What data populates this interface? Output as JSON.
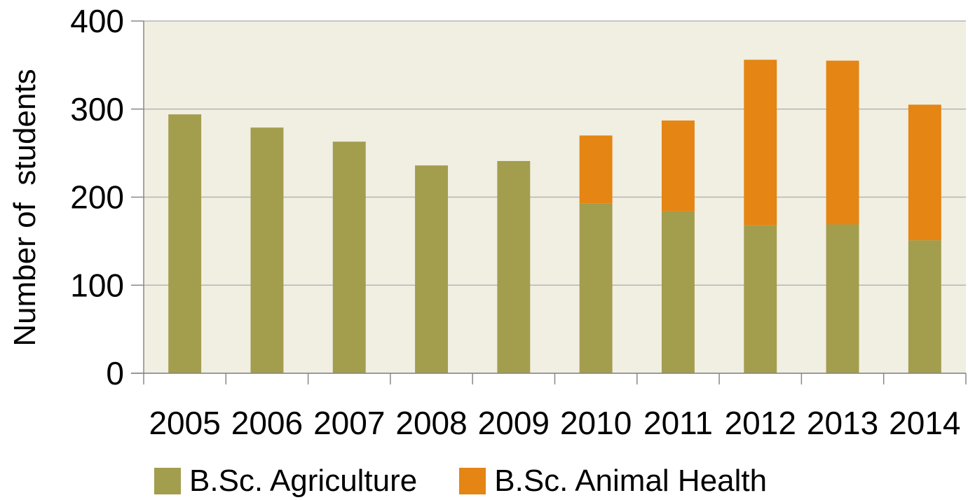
{
  "chart_data": {
    "type": "bar",
    "stacked": true,
    "title": "",
    "xlabel": "",
    "ylabel": "Number of  students",
    "categories": [
      "2005",
      "2006",
      "2007",
      "2008",
      "2009",
      "2010",
      "2011",
      "2012",
      "2013",
      "2014"
    ],
    "series": [
      {
        "name": "B.Sc. Agriculture",
        "color": "#a39d4e",
        "values": [
          294,
          279,
          263,
          236,
          241,
          193,
          184,
          168,
          169,
          151
        ]
      },
      {
        "name": "B.Sc. Animal Health",
        "color": "#e48514",
        "values": [
          0,
          0,
          0,
          0,
          0,
          77,
          103,
          188,
          186,
          154
        ]
      }
    ],
    "ylim": [
      0,
      400
    ],
    "yticks": [
      "0",
      "100",
      "200",
      "300",
      "400"
    ],
    "grid": true,
    "legend_position": "bottom",
    "plot_background": "#f1efe2"
  }
}
